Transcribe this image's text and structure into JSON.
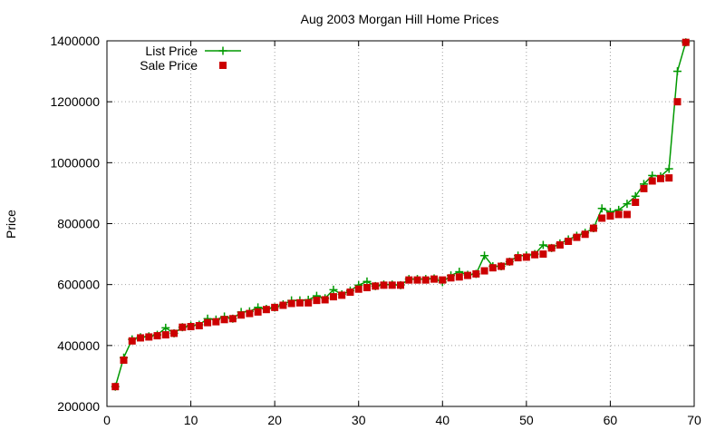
{
  "chart_data": {
    "type": "line",
    "title": "Aug 2003 Morgan Hill Home Prices",
    "xlabel": "",
    "ylabel": "Price",
    "xlim": [
      0,
      70
    ],
    "ylim": [
      200000,
      1400000
    ],
    "xticks": [
      0,
      10,
      20,
      30,
      40,
      50,
      60,
      70
    ],
    "yticks": [
      200000,
      400000,
      600000,
      800000,
      1000000,
      1200000,
      1400000
    ],
    "grid": true,
    "legend_position": "top-left",
    "series": [
      {
        "name": "List Price",
        "style": "line+plus",
        "color": "#009900",
        "x": [
          1,
          2,
          3,
          4,
          5,
          6,
          7,
          8,
          9,
          10,
          11,
          12,
          13,
          14,
          15,
          16,
          17,
          18,
          19,
          20,
          21,
          22,
          23,
          24,
          25,
          26,
          27,
          28,
          29,
          30,
          31,
          32,
          33,
          34,
          35,
          36,
          37,
          38,
          39,
          40,
          41,
          42,
          43,
          44,
          45,
          46,
          47,
          48,
          49,
          50,
          51,
          52,
          53,
          54,
          55,
          56,
          57,
          58,
          59,
          60,
          61,
          62,
          63,
          64,
          65,
          66,
          67,
          68,
          69
        ],
        "values": [
          265000,
          360000,
          420000,
          427000,
          430000,
          435000,
          458000,
          440000,
          460000,
          465000,
          468000,
          488000,
          485000,
          495000,
          488000,
          510000,
          512000,
          525000,
          520000,
          525000,
          535000,
          548000,
          548000,
          550000,
          563000,
          555000,
          583000,
          568000,
          580000,
          598000,
          610000,
          595000,
          600000,
          600000,
          598000,
          618000,
          618000,
          618000,
          620000,
          608000,
          630000,
          642000,
          632000,
          635000,
          695000,
          660000,
          660000,
          675000,
          695000,
          695000,
          700000,
          730000,
          720000,
          735000,
          748000,
          760000,
          770000,
          785000,
          850000,
          838000,
          845000,
          865000,
          890000,
          930000,
          958000,
          955000,
          980000,
          1300000,
          1395000
        ]
      },
      {
        "name": "Sale Price",
        "style": "square-markers",
        "color": "#cc0000",
        "x": [
          1,
          2,
          3,
          4,
          5,
          6,
          7,
          8,
          9,
          10,
          11,
          12,
          13,
          14,
          15,
          16,
          17,
          18,
          19,
          20,
          21,
          22,
          23,
          24,
          25,
          26,
          27,
          28,
          29,
          30,
          31,
          32,
          33,
          34,
          35,
          36,
          37,
          38,
          39,
          40,
          41,
          42,
          43,
          44,
          45,
          46,
          47,
          48,
          49,
          50,
          51,
          52,
          53,
          54,
          55,
          56,
          57,
          58,
          59,
          60,
          61,
          62,
          63,
          64,
          65,
          66,
          67,
          68,
          69
        ],
        "values": [
          265000,
          352000,
          415000,
          425000,
          428000,
          432000,
          435000,
          440000,
          460000,
          462000,
          465000,
          475000,
          478000,
          485000,
          488000,
          500000,
          505000,
          510000,
          518000,
          525000,
          532000,
          538000,
          540000,
          540000,
          548000,
          550000,
          560000,
          565000,
          575000,
          585000,
          590000,
          595000,
          598000,
          598000,
          598000,
          615000,
          615000,
          615000,
          618000,
          615000,
          622000,
          625000,
          630000,
          635000,
          645000,
          655000,
          660000,
          675000,
          688000,
          690000,
          698000,
          700000,
          720000,
          730000,
          742000,
          755000,
          765000,
          785000,
          818000,
          825000,
          830000,
          830000,
          870000,
          915000,
          940000,
          948000,
          950000,
          1200000,
          1395000
        ]
      }
    ]
  }
}
